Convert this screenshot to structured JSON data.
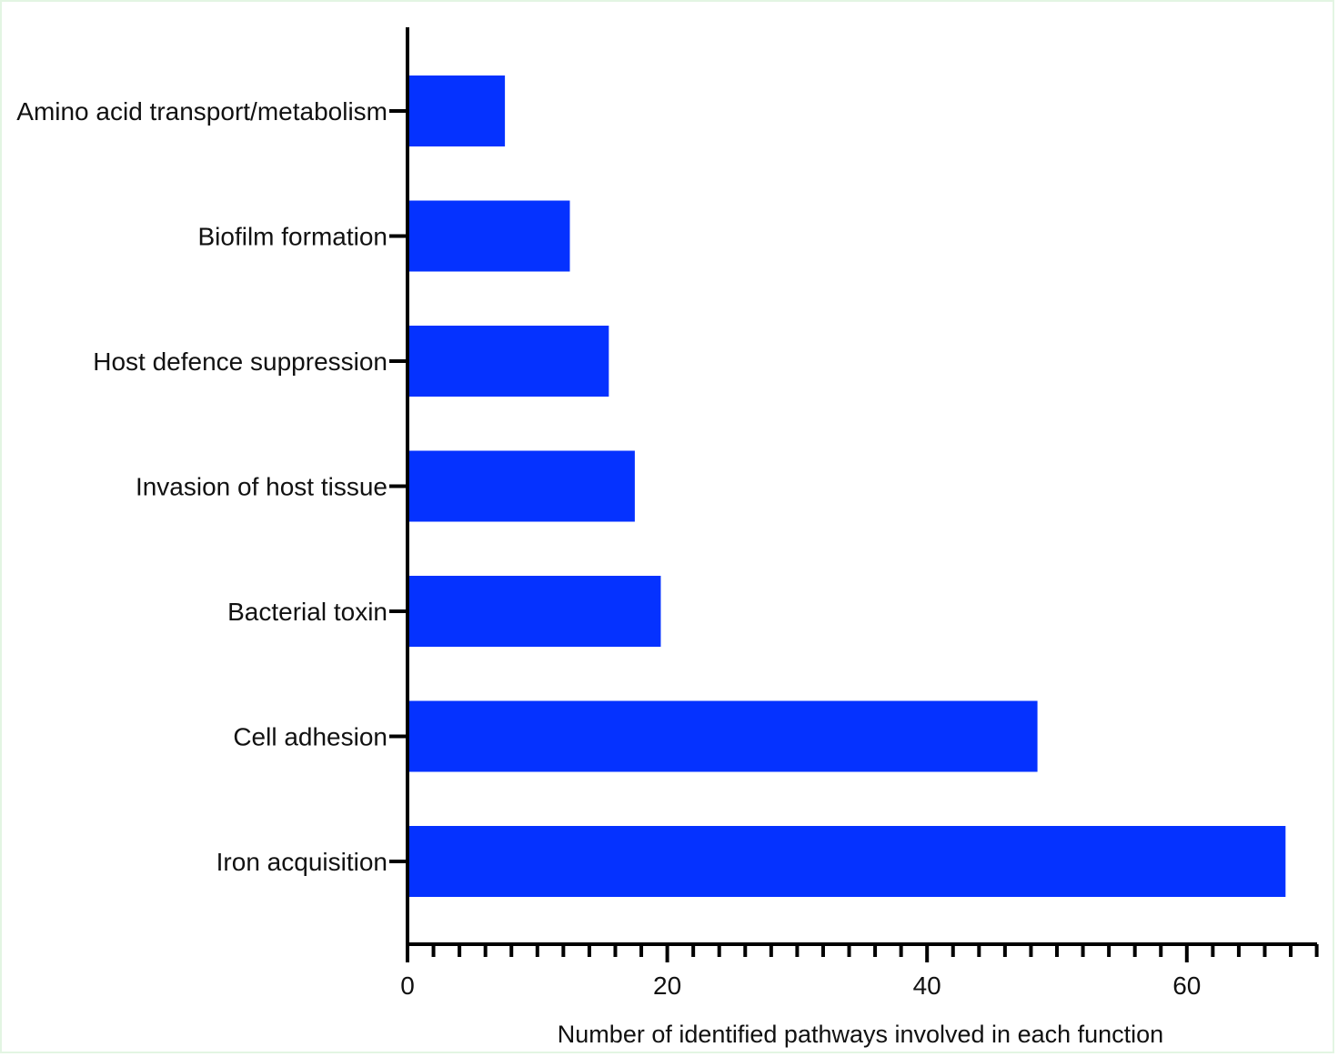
{
  "chart_data": {
    "type": "bar",
    "orientation": "horizontal",
    "categories": [
      "Amino acid transport/metabolism",
      "Biofilm formation",
      "Host defence suppression",
      "Invasion of host tissue",
      "Bacterial toxin",
      "Cell adhesion",
      "Iron acquisition"
    ],
    "values": [
      7.5,
      12.5,
      15.5,
      17.5,
      19.5,
      48.5,
      67.6
    ],
    "title": "",
    "xlabel": "Number of identified pathways involved in each function",
    "ylabel": "",
    "xlim": [
      0,
      70
    ],
    "xticks": [
      "0",
      "20",
      "40",
      "60"
    ],
    "minor_tick_step": 2,
    "bar_color": "#0532ff",
    "grid": false,
    "legend": "none"
  }
}
